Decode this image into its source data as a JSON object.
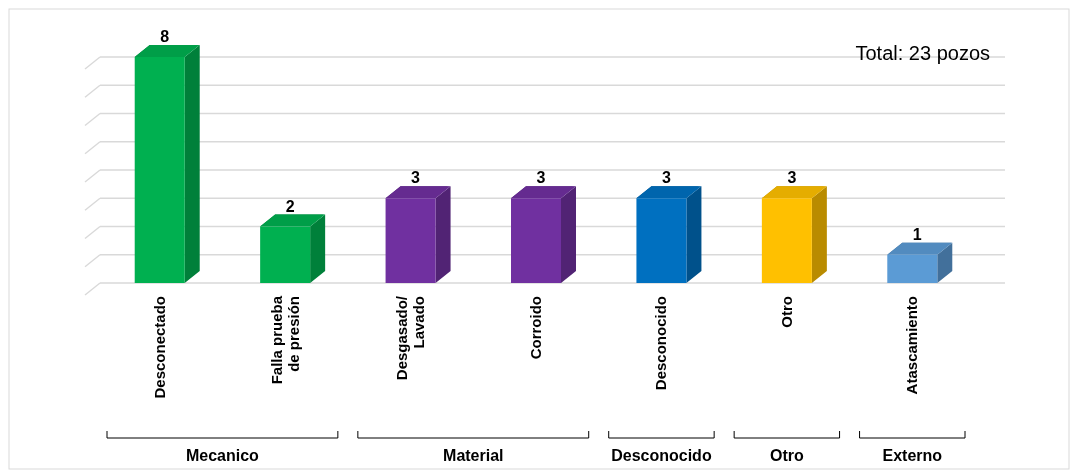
{
  "chart_data": {
    "type": "bar",
    "categories": [
      "Desconectado",
      "Falla prueba\nde presión",
      "Desgasado/\nLavado",
      "Corroido",
      "Desconocido",
      "Otro",
      "Atascamiento"
    ],
    "values": [
      8,
      2,
      3,
      3,
      3,
      3,
      1
    ],
    "colors": [
      "#00b050",
      "#00b050",
      "#7030a0",
      "#7030a0",
      "#0070c0",
      "#ffc000",
      "#5b9bd5"
    ],
    "ylim": [
      0,
      8
    ],
    "tick_labels": "x",
    "grid": "y",
    "data_labels": true,
    "annotations": [
      "Total: 23 pozos",
      "Mecanico",
      "Material",
      "Desconocido",
      "Otro",
      "Externo"
    ]
  }
}
